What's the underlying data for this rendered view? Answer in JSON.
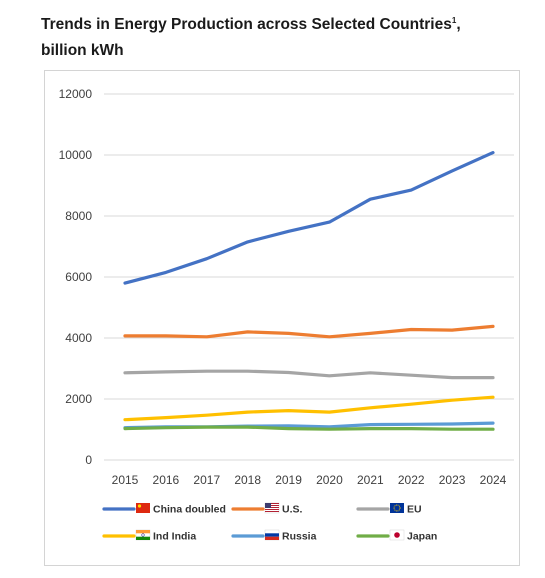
{
  "title": {
    "line1": "Trends in Energy Production across Selected Countries",
    "sup": "1",
    "line1_tail": ",",
    "line2": "billion kWh"
  },
  "chart_data": {
    "type": "line",
    "title": "Trends in Energy Production across Selected Countries¹, billion kWh",
    "xlabel": "",
    "ylabel": "",
    "x": [
      2015,
      2016,
      2017,
      2018,
      2019,
      2020,
      2021,
      2022,
      2023,
      2024
    ],
    "ylim": [
      0,
      12000
    ],
    "yticks": [
      0,
      2000,
      4000,
      6000,
      8000,
      10000,
      12000
    ],
    "grid": true,
    "legend_position": "bottom",
    "series": [
      {
        "name": "China doubled",
        "flag": "cn-flag-icon",
        "color": "#4472C4",
        "values": [
          5800,
          6150,
          6600,
          7150,
          7500,
          7800,
          8550,
          8850,
          9480,
          10080
        ]
      },
      {
        "name": "U.S.",
        "flag": "us-flag-icon",
        "color": "#ED7D31",
        "values": [
          4070,
          4070,
          4040,
          4200,
          4150,
          4040,
          4150,
          4280,
          4260,
          4380
        ]
      },
      {
        "name": "EU",
        "flag": "eu-flag-icon",
        "color": "#A5A5A5",
        "values": [
          2860,
          2890,
          2910,
          2910,
          2870,
          2760,
          2860,
          2780,
          2700,
          2700
        ]
      },
      {
        "name": "Ind India",
        "flag": "in-flag-icon",
        "color": "#FFC000",
        "values": [
          1320,
          1390,
          1470,
          1570,
          1620,
          1570,
          1710,
          1830,
          1960,
          2060
        ]
      },
      {
        "name": "Russia",
        "flag": "ru-flag-icon",
        "color": "#5B9BD5",
        "values": [
          1060,
          1090,
          1090,
          1110,
          1120,
          1090,
          1160,
          1170,
          1180,
          1210
        ]
      },
      {
        "name": "Japan",
        "flag": "jp-flag-icon",
        "color": "#70AD47",
        "values": [
          1030,
          1060,
          1080,
          1080,
          1030,
          1010,
          1030,
          1030,
          1010,
          1010
        ]
      }
    ]
  }
}
